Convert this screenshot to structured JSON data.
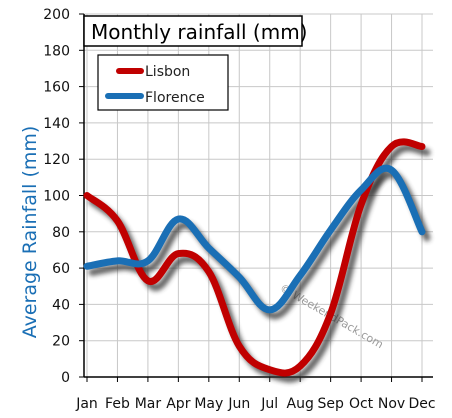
{
  "chart_data": {
    "type": "line",
    "title": "Monthly rainfall (mm)",
    "xlabel": "",
    "ylabel": "Average Rainfall (mm)",
    "categories": [
      "Jan",
      "Feb",
      "Mar",
      "Apr",
      "May",
      "Jun",
      "Jul",
      "Aug",
      "Sep",
      "Oct",
      "Nov",
      "Dec"
    ],
    "ylim": [
      0,
      200
    ],
    "yticks": [
      0,
      20,
      40,
      60,
      80,
      100,
      120,
      140,
      160,
      180,
      200
    ],
    "grid": true,
    "legend_position": "top-left",
    "series": [
      {
        "name": "Lisbon",
        "color": "#c00000",
        "values": [
          100,
          86,
          53,
          68,
          58,
          17,
          4,
          6,
          35,
          95,
          127,
          127
        ]
      },
      {
        "name": "Florence",
        "color": "#1a6fb5",
        "values": [
          61,
          64,
          64,
          87,
          71,
          55,
          37,
          56,
          81,
          103,
          114,
          80
        ]
      }
    ],
    "watermark": "© WeekendPack.com"
  },
  "colors": {
    "ylabel": "#1a6fb5",
    "grid": "#c8c8c8",
    "shadow": "#333333"
  }
}
